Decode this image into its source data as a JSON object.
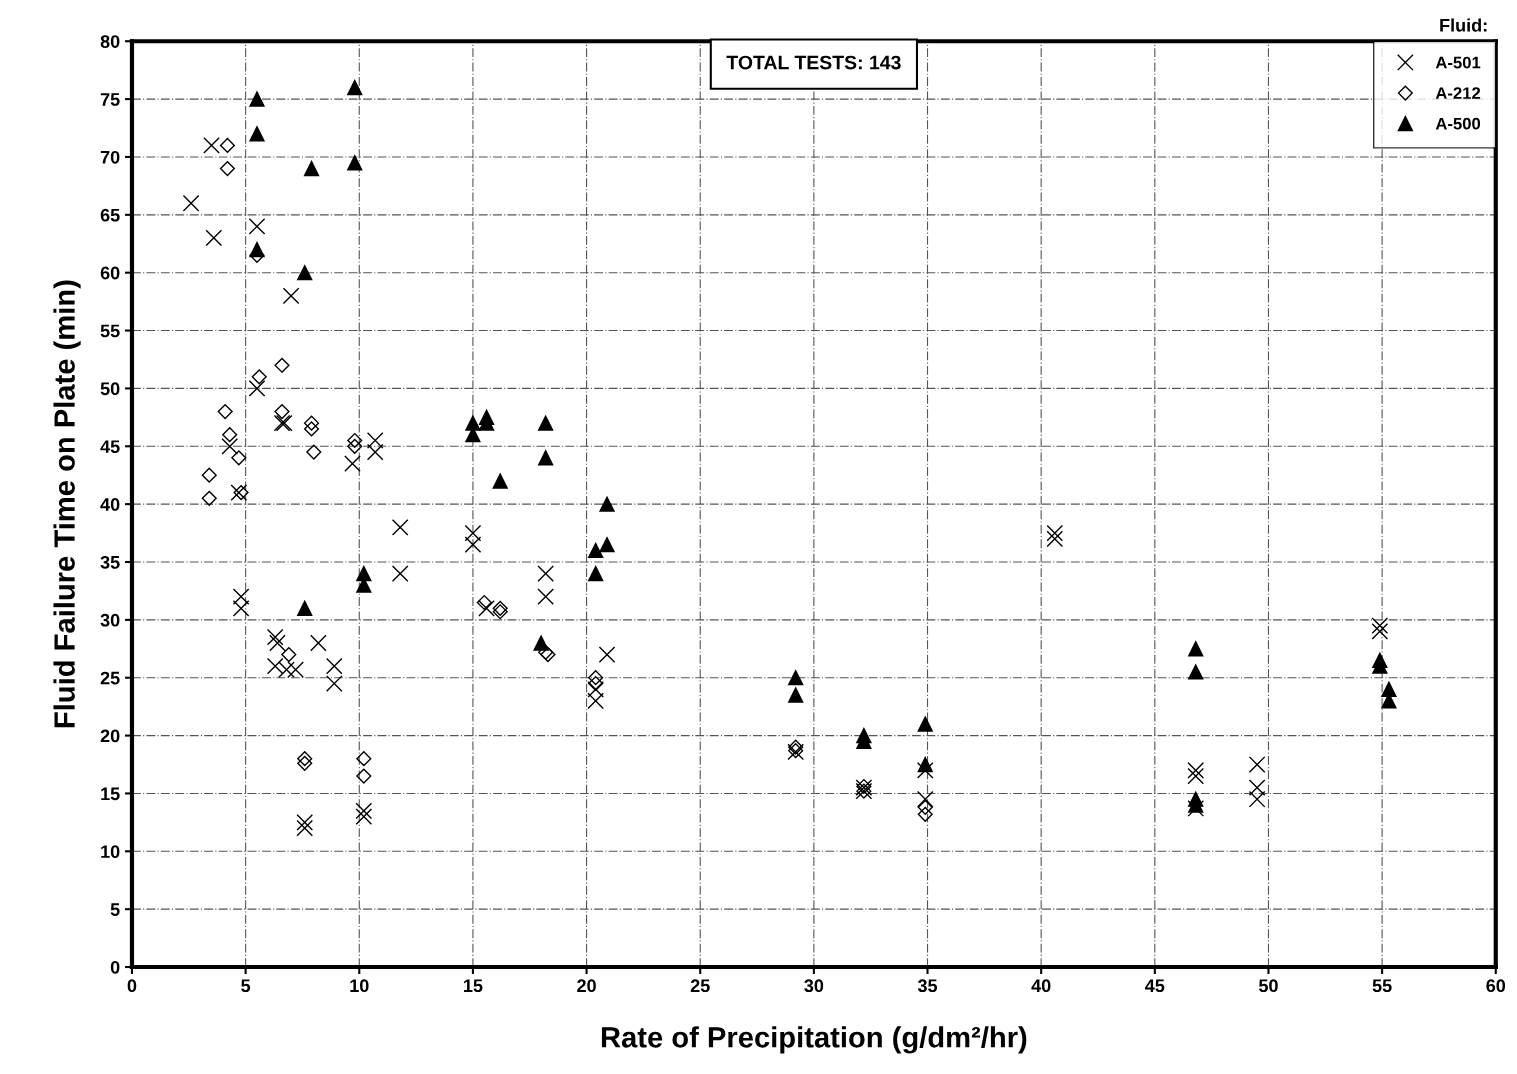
{
  "chart_data": {
    "type": "scatter",
    "xlabel": "Rate of Precipitation (g/dm²/hr)",
    "ylabel": "Fluid Failure Time on Plate (min)",
    "legend_title": "Fluid:",
    "annotations": [
      "TOTAL TESTS: 143"
    ],
    "xlim": [
      0,
      60
    ],
    "xticks": [
      0,
      5,
      10,
      15,
      20,
      25,
      30,
      35,
      40,
      45,
      50,
      55,
      60
    ],
    "ylim": [
      0,
      80
    ],
    "yticks": [
      0,
      5,
      10,
      15,
      20,
      25,
      30,
      35,
      40,
      45,
      50,
      55,
      60,
      65,
      70,
      75,
      80
    ],
    "grid": true,
    "legend": "top right",
    "series": [
      {
        "name": "A-501",
        "color": "#000000",
        "marker": "cross",
        "x": [
          2.6,
          3.5,
          3.6,
          4.3,
          4.7,
          4.8,
          4.8,
          5.5,
          5.5,
          6.6,
          6.7,
          7.0,
          6.3,
          6.4,
          6.3,
          6.8,
          7.2,
          7.6,
          7.6,
          8.2,
          8.9,
          8.9,
          9.7,
          10.2,
          10.2,
          10.7,
          10.7,
          11.8,
          11.8,
          15.0,
          15.0,
          15.6,
          18.2,
          18.2,
          20.4,
          20.4,
          20.9,
          29.2,
          32.2,
          32.2,
          34.9,
          34.9,
          40.6,
          40.6,
          46.8,
          46.8,
          46.8,
          49.5,
          49.5,
          49.5,
          54.9,
          54.9
        ],
        "values": [
          66,
          71,
          63,
          45,
          41,
          32,
          31,
          64,
          50,
          47,
          47,
          58,
          28.5,
          28,
          26,
          25.7,
          25.7,
          12.5,
          12,
          28,
          26,
          24.5,
          43.5,
          13.5,
          13,
          45.5,
          44.5,
          38,
          34,
          37.5,
          36.5,
          31,
          34,
          32,
          24,
          23,
          27,
          18.6,
          15.5,
          15.2,
          17,
          14.5,
          37.5,
          37,
          17,
          16.5,
          13.7,
          17.5,
          15.5,
          14.5,
          29.5,
          29
        ]
      },
      {
        "name": "A-212",
        "color": "#000000",
        "marker": "diamond",
        "x": [
          3.4,
          3.4,
          4.1,
          4.2,
          4.2,
          4.3,
          4.7,
          4.8,
          5.5,
          5.6,
          6.6,
          6.6,
          6.9,
          7.6,
          7.6,
          7.9,
          7.9,
          8.0,
          9.8,
          9.8,
          10.2,
          10.2,
          15.5,
          16.2,
          16.2,
          18.2,
          18.3,
          20.4,
          20.4,
          29.2,
          29.2,
          32.2,
          32.2,
          34.9,
          34.9
        ],
        "values": [
          42.5,
          40.5,
          48,
          71,
          69,
          46,
          44,
          41,
          61.5,
          51,
          52,
          48,
          27,
          18,
          17.6,
          47,
          46.5,
          44.5,
          45.5,
          45,
          18,
          16.5,
          31.5,
          31,
          30.7,
          27.2,
          27,
          25,
          24.5,
          19,
          18.7,
          15.6,
          15.2,
          13.8,
          13.2
        ]
      },
      {
        "name": "A-500",
        "color": "#000000",
        "marker": "triangle",
        "x": [
          5.5,
          5.5,
          5.5,
          7.6,
          7.9,
          9.8,
          9.8,
          7.6,
          10.2,
          10.2,
          15.0,
          15.0,
          15.6,
          15.6,
          16.2,
          18.2,
          18.2,
          18.0,
          20.4,
          20.4,
          20.9,
          20.9,
          29.2,
          29.2,
          32.2,
          32.2,
          34.9,
          34.9,
          46.8,
          46.8,
          46.8,
          46.8,
          54.9,
          54.9,
          55.3,
          55.3
        ],
        "values": [
          75,
          72,
          62,
          60,
          69,
          76,
          69.5,
          31,
          34,
          33,
          47,
          46,
          47.5,
          47,
          42,
          47,
          44,
          28,
          36,
          34,
          40,
          36.5,
          25,
          23.5,
          20,
          19.5,
          21,
          17.5,
          27.5,
          25.5,
          14.5,
          14,
          26.5,
          26,
          24,
          23
        ]
      }
    ]
  }
}
